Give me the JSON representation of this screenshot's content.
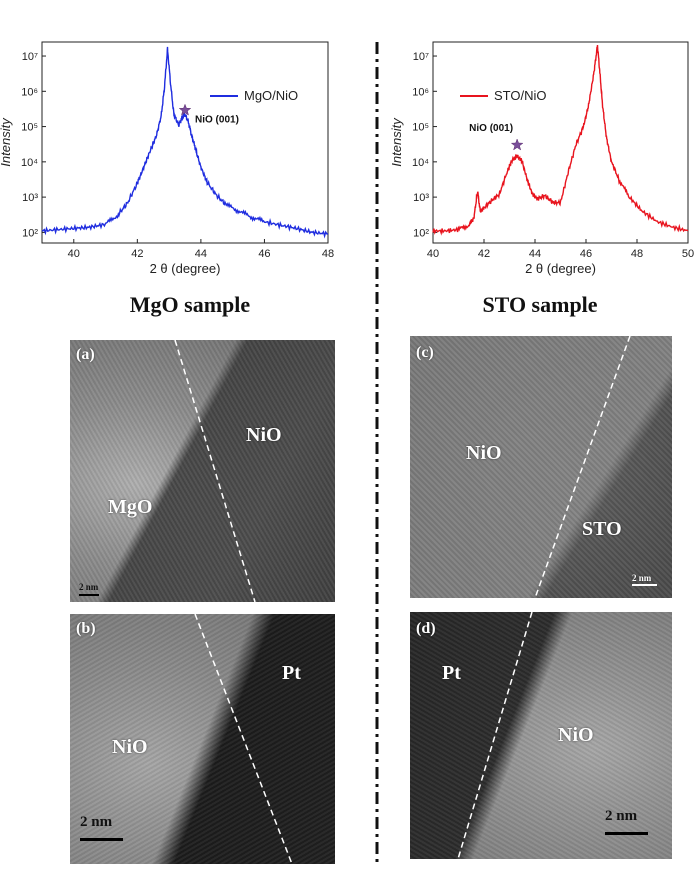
{
  "chart_data": [
    {
      "type": "line",
      "title": "",
      "xlabel": "2 θ (degree)",
      "ylabel": "Intensity",
      "xlim": [
        39,
        48
      ],
      "ylim": [
        50,
        25000000
      ],
      "yscale": "log",
      "xticks": [
        "40",
        "42",
        "44",
        "46",
        "48"
      ],
      "yticks": [
        "10²",
        "10³",
        "10⁴",
        "10⁵",
        "10⁶",
        "10⁷"
      ],
      "legend": "MgO/NiO",
      "color": "#1f2ddf",
      "annotation": {
        "label": "NiO (001)",
        "x": 43.5,
        "y": 290000
      },
      "series": [
        {
          "name": "MgO/NiO",
          "x": [
            39.0,
            39.5,
            40.0,
            40.5,
            41.0,
            41.4,
            41.7,
            42.0,
            42.2,
            42.4,
            42.6,
            42.75,
            42.85,
            42.95,
            43.05,
            43.15,
            43.3,
            43.4,
            43.5,
            43.6,
            43.7,
            43.85,
            44.0,
            44.2,
            44.5,
            44.8,
            45.2,
            45.6,
            46.0,
            46.5,
            47.0,
            47.5,
            48.0
          ],
          "y": [
            110,
            120,
            130,
            140,
            170,
            320,
            700,
            2500,
            7000,
            20000,
            55000,
            200000,
            1200000,
            16000000,
            1500000,
            220000,
            110000,
            170000,
            220000,
            140000,
            60000,
            20000,
            7000,
            2600,
            1100,
            600,
            400,
            270,
            200,
            160,
            130,
            100,
            90
          ]
        }
      ]
    },
    {
      "type": "line",
      "title": "",
      "xlabel": "2 θ (degree)",
      "ylabel": "Intensity",
      "xlim": [
        40,
        50
      ],
      "ylim": [
        50,
        25000000
      ],
      "yscale": "log",
      "xticks": [
        "40",
        "42",
        "44",
        "46",
        "48",
        "50"
      ],
      "yticks": [
        "10²",
        "10³",
        "10⁴",
        "10⁵",
        "10⁶",
        "10⁷"
      ],
      "legend": "STO/NiO",
      "color": "#e8141e",
      "annotation": {
        "label": "NiO (001)",
        "x": 43.3,
        "y": 30000
      },
      "series": [
        {
          "name": "STO/NiO",
          "x": [
            40.0,
            40.5,
            41.0,
            41.4,
            41.6,
            41.75,
            41.85,
            42.0,
            42.3,
            42.6,
            42.9,
            43.1,
            43.3,
            43.5,
            43.7,
            43.9,
            44.1,
            44.4,
            44.7,
            45.0,
            45.3,
            45.6,
            45.9,
            46.1,
            46.3,
            46.45,
            46.55,
            46.65,
            46.8,
            47.0,
            47.3,
            47.7,
            48.2,
            48.8,
            49.4,
            50.0
          ],
          "y": [
            110,
            110,
            120,
            160,
            250,
            1500,
            400,
            500,
            800,
            1200,
            5000,
            11000,
            15000,
            10000,
            3000,
            1200,
            900,
            1100,
            700,
            700,
            5000,
            30000,
            100000,
            400000,
            3000000,
            20000000,
            3000000,
            400000,
            50000,
            10000,
            3000,
            1000,
            400,
            200,
            140,
            110
          ]
        }
      ]
    }
  ],
  "sections": {
    "mgo_title": "MgO sample",
    "sto_title": "STO sample"
  },
  "tem": {
    "a": {
      "panel": "(a)",
      "upper": "NiO",
      "lower": "MgO",
      "scale": "2 nm"
    },
    "b": {
      "panel": "(b)",
      "upper": "Pt",
      "lower": "NiO",
      "scale": "2 nm"
    },
    "c": {
      "panel": "(c)",
      "upper": "NiO",
      "lower": "STO",
      "scale": "2 nm"
    },
    "d": {
      "panel": "(d)",
      "upper": "Pt",
      "lower": "NiO",
      "scale": "2 nm"
    }
  }
}
